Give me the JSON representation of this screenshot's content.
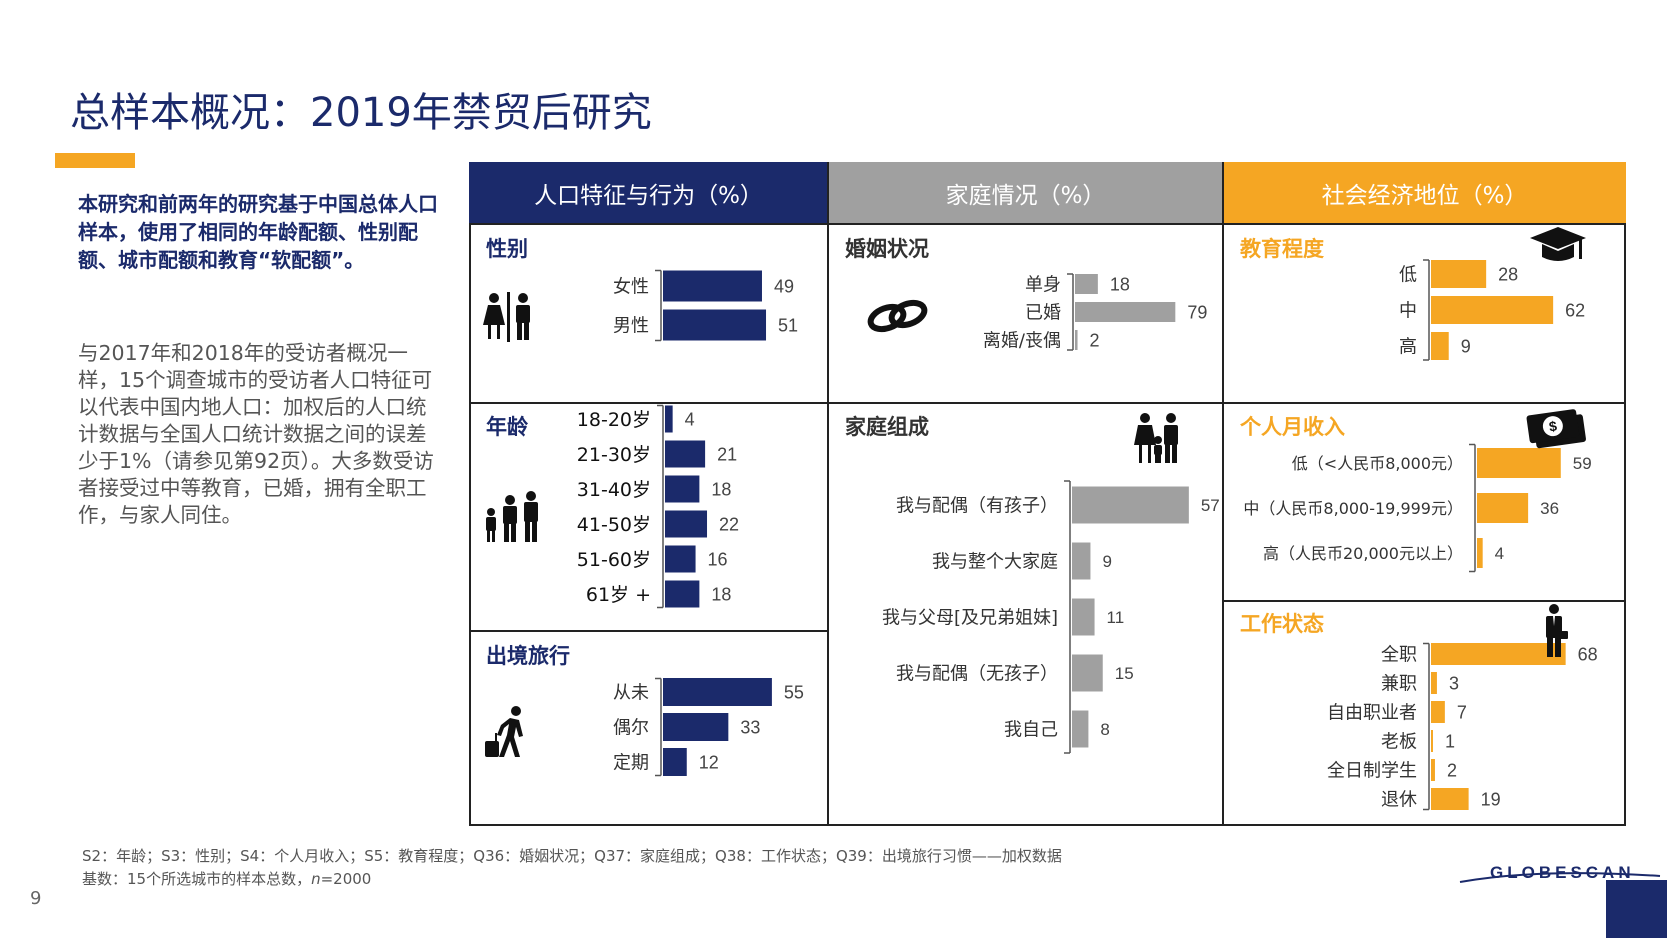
{
  "title": "总样本概况：2019年禁贸后研究",
  "intro": "本研究和前两年的研究基于中国总体人口样本，使用了相同的年龄配额、性别配额、城市配额和教育“软配额”。",
  "body": "与2017年和2018年的受访者概况一样，15个调查城市的受访者人口特征可以代表中国内地人口：加权后的人口统计数据与全国人口统计数据之间的误差少于1%（请参见第92页）。大多数受访者接受过中等教育，已婚，拥有全职工作，与家人同住。",
  "headers": {
    "demographics": "人口特征与行为（%）",
    "household": "家庭情况（%）",
    "socioeconomic": "社会经济地位（%）"
  },
  "colors": {
    "navy": "#1b2a6b",
    "gray": "#a0a0a0",
    "gold": "#f5a623",
    "dark": "#222222"
  },
  "icons": [
    "male-female-icon",
    "family-of-three-icon",
    "traveler-with-luggage-icon",
    "wedding-rings-icon",
    "family-with-child-icon",
    "graduation-cap-icon",
    "money-stack-icon",
    "businessman-icon"
  ],
  "footnote": {
    "line1": "S2：年龄；S3：性别；S4：个人月收入；S5：教育程度；Q36：婚姻状况；Q37：家庭组成；Q38：工作状态；Q39：出境旅行习惯——加权数据",
    "line2_prefix": "基数：15个所选城市的样本总数，",
    "line2_n": "n",
    "line2_suffix": "=2000"
  },
  "page_number": "9",
  "logo": "GLOBESCAN",
  "chart_data": [
    {
      "id": "gender",
      "type": "bar",
      "title": "性别",
      "color": "navy",
      "categories": [
        "女性",
        "男性"
      ],
      "values": [
        49,
        51
      ]
    },
    {
      "id": "age",
      "type": "bar",
      "title": "年龄",
      "color": "navy",
      "categories": [
        "18-20岁",
        "21-30岁",
        "31-40岁",
        "41-50岁",
        "51-60岁",
        "61岁 +"
      ],
      "values": [
        4,
        21,
        18,
        22,
        16,
        18
      ]
    },
    {
      "id": "travel",
      "type": "bar",
      "title": "出境旅行",
      "color": "navy",
      "categories": [
        "从未",
        "偶尔",
        "定期"
      ],
      "values": [
        55,
        33,
        12
      ]
    },
    {
      "id": "marital",
      "type": "bar",
      "title": "婚姻状况",
      "color": "gray",
      "categories": [
        "单身",
        "已婚",
        "离婚/丧偶"
      ],
      "values": [
        18,
        79,
        2
      ]
    },
    {
      "id": "household",
      "type": "bar",
      "title": "家庭组成",
      "color": "gray",
      "categories": [
        "我与配偶（有孩子）",
        "我与整个大家庭",
        "我与父母[及兄弟姐妹]",
        "我与配偶（无孩子）",
        "我自己"
      ],
      "values": [
        57,
        9,
        11,
        15,
        8
      ]
    },
    {
      "id": "education",
      "type": "bar",
      "title": "教育程度",
      "color": "gold",
      "categories": [
        "低",
        "中",
        "高"
      ],
      "values": [
        28,
        62,
        9
      ]
    },
    {
      "id": "income",
      "type": "bar",
      "title": "个人月收入",
      "color": "gold",
      "categories": [
        "低（<人民币8,000元）",
        "中（人民币8,000-19,999元）",
        "高（人民币20,000元以上）"
      ],
      "values": [
        59,
        36,
        4
      ]
    },
    {
      "id": "employment",
      "type": "bar",
      "title": "工作状态",
      "color": "gold",
      "categories": [
        "全职",
        "兼职",
        "自由职业者",
        "老板",
        "全日制学生",
        "退休"
      ],
      "values": [
        68,
        3,
        7,
        1,
        2,
        19
      ]
    }
  ]
}
